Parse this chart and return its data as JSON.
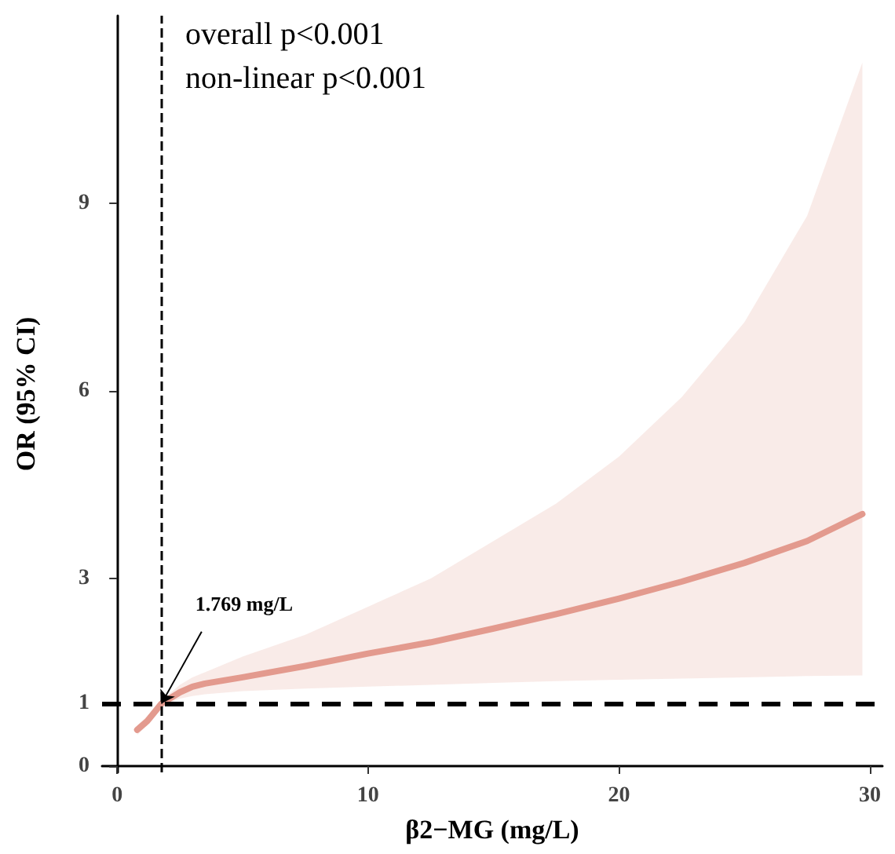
{
  "chart_data": {
    "type": "line",
    "xlabel": "β2−MG (mg/L)",
    "ylabel": "OR (95% CI)",
    "x": [
      0.8,
      1.2,
      1.769,
      2.5,
      3,
      3.5,
      5,
      7.5,
      10,
      12.5,
      15,
      17.5,
      20,
      22.5,
      25,
      27.5,
      29.7
    ],
    "series": [
      {
        "color": "#e39a8e",
        "values": [
          0.58,
          0.72,
          1.0,
          1.18,
          1.27,
          1.32,
          1.42,
          1.6,
          1.8,
          1.98,
          2.2,
          2.43,
          2.68,
          2.95,
          3.25,
          3.6,
          4.03
        ],
        "lower": [
          0.5,
          0.65,
          0.95,
          1.08,
          1.12,
          1.15,
          1.2,
          1.24,
          1.27,
          1.3,
          1.33,
          1.36,
          1.38,
          1.4,
          1.42,
          1.44,
          1.45
        ],
        "upper": [
          0.65,
          0.8,
          1.05,
          1.3,
          1.42,
          1.5,
          1.75,
          2.1,
          2.55,
          3.0,
          3.6,
          4.2,
          4.95,
          5.9,
          7.1,
          8.8,
          11.25
        ]
      }
    ],
    "xlim": [
      -0.6,
      30.5
    ],
    "xticks": [
      0,
      10,
      20,
      30
    ],
    "ylim": [
      -0.1,
      12
    ],
    "yticks": [
      0,
      1,
      3,
      6,
      9
    ],
    "grid": false,
    "marker": "none",
    "line_style": "solid",
    "ref_lines": [
      {
        "axis": "x",
        "value": 1.769,
        "line_style": "dashed",
        "color": "#000000"
      },
      {
        "axis": "y",
        "value": 1,
        "line_style": "dashed",
        "color": "#000000"
      }
    ],
    "annotations": [
      "overall p<0.001",
      "non-linear p<0.001",
      {
        "text": "1.769 mg/L",
        "x": 1.769,
        "y": 1
      }
    ]
  }
}
